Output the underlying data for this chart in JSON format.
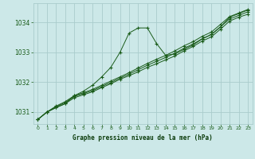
{
  "background_color": "#cce8e8",
  "grid_color": "#aacccc",
  "line_color": "#1a5c1a",
  "dark_line_color": "#0a3a0a",
  "xlim": [
    -0.5,
    23.5
  ],
  "ylim": [
    1030.6,
    1034.65
  ],
  "yticks": [
    1031,
    1032,
    1033,
    1034
  ],
  "xticks": [
    0,
    1,
    2,
    3,
    4,
    5,
    6,
    7,
    8,
    9,
    10,
    11,
    12,
    13,
    14,
    15,
    16,
    17,
    18,
    19,
    20,
    21,
    22,
    23
  ],
  "xlabel": "Graphe pression niveau de la mer (hPa)",
  "series": [
    {
      "x": [
        0,
        1,
        2,
        3,
        4,
        5,
        6,
        7,
        8,
        9,
        10,
        11,
        12,
        13,
        14,
        15,
        16,
        17,
        18,
        19,
        20,
        21,
        22,
        23
      ],
      "y": [
        1030.75,
        1031.0,
        1031.15,
        1031.28,
        1031.48,
        1031.58,
        1031.68,
        1031.82,
        1031.95,
        1032.1,
        1032.22,
        1032.35,
        1032.5,
        1032.62,
        1032.75,
        1032.88,
        1033.05,
        1033.2,
        1033.38,
        1033.52,
        1033.78,
        1034.05,
        1034.18,
        1034.28
      ]
    },
    {
      "x": [
        0,
        1,
        2,
        3,
        4,
        5,
        6,
        7,
        8,
        9,
        10,
        11,
        12,
        13,
        14,
        15,
        16,
        17,
        18,
        19,
        20,
        21,
        22,
        23
      ],
      "y": [
        1030.75,
        1031.0,
        1031.18,
        1031.32,
        1031.52,
        1031.62,
        1031.72,
        1031.86,
        1031.99,
        1032.14,
        1032.27,
        1032.42,
        1032.57,
        1032.7,
        1032.83,
        1032.97,
        1033.14,
        1033.28,
        1033.46,
        1033.6,
        1033.86,
        1034.12,
        1034.24,
        1034.36
      ]
    },
    {
      "x": [
        0,
        1,
        2,
        3,
        4,
        5,
        6,
        7,
        8,
        9,
        10,
        11,
        12,
        13,
        14,
        15,
        16,
        17,
        18,
        19,
        20,
        21,
        22,
        23
      ],
      "y": [
        1030.75,
        1031.0,
        1031.2,
        1031.35,
        1031.55,
        1031.65,
        1031.76,
        1031.9,
        1032.04,
        1032.18,
        1032.32,
        1032.48,
        1032.63,
        1032.77,
        1032.9,
        1033.05,
        1033.22,
        1033.36,
        1033.54,
        1033.68,
        1033.94,
        1034.2,
        1034.32,
        1034.44
      ]
    },
    {
      "x": [
        0,
        1,
        2,
        3,
        4,
        5,
        6,
        7,
        8,
        9,
        10,
        11,
        12,
        13,
        14,
        15,
        16,
        17,
        18,
        19,
        20,
        21,
        22,
        23
      ],
      "y": [
        1030.75,
        1031.0,
        1031.15,
        1031.28,
        1031.55,
        1031.7,
        1031.9,
        1032.18,
        1032.5,
        1033.0,
        1033.65,
        1033.82,
        1033.82,
        1033.3,
        1032.9,
        1032.95,
        1033.1,
        1033.25,
        1033.45,
        1033.6,
        1033.85,
        1034.18,
        1034.3,
        1034.42
      ]
    }
  ]
}
